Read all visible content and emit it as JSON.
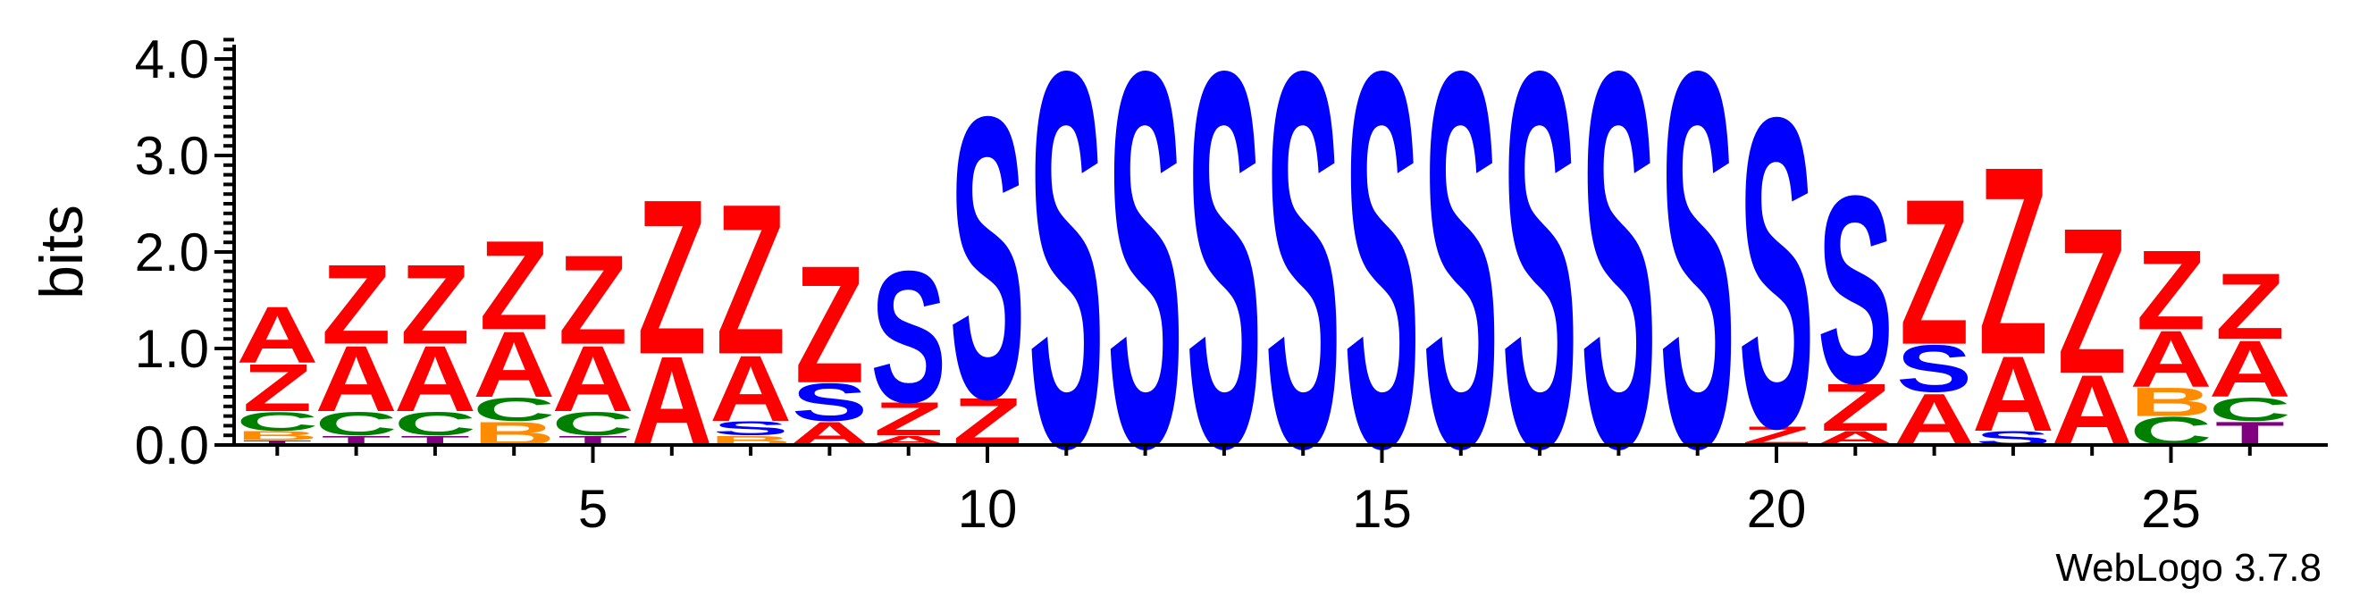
{
  "chart_data": {
    "type": "sequence-logo",
    "ylabel": "bits",
    "ylim": [
      0,
      4.2
    ],
    "yticks": [
      "0.0",
      "1.0",
      "2.0",
      "3.0",
      "4.0"
    ],
    "xticks": [
      5,
      10,
      15,
      20,
      25
    ],
    "credit": "WebLogo 3.7.8",
    "colors": {
      "A": "#ff0000",
      "Z": "#ff0000",
      "S": "#0000ff",
      "C": "#008000",
      "T": "#800080",
      "B": "#ff8c00"
    },
    "positions": [
      {
        "pos": 1,
        "stack": [
          [
            "T",
            0.05
          ],
          [
            "B",
            0.1
          ],
          [
            "C",
            0.2
          ],
          [
            "Z",
            0.5
          ],
          [
            "A",
            0.6
          ]
        ]
      },
      {
        "pos": 2,
        "stack": [
          [
            "T",
            0.1
          ],
          [
            "C",
            0.25
          ],
          [
            "A",
            0.7
          ],
          [
            "Z",
            0.85
          ]
        ]
      },
      {
        "pos": 3,
        "stack": [
          [
            "T",
            0.1
          ],
          [
            "C",
            0.25
          ],
          [
            "A",
            0.7
          ],
          [
            "Z",
            0.85
          ]
        ]
      },
      {
        "pos": 4,
        "stack": [
          [
            "B",
            0.25
          ],
          [
            "C",
            0.25
          ],
          [
            "A",
            0.7
          ],
          [
            "Z",
            0.95
          ]
        ]
      },
      {
        "pos": 5,
        "stack": [
          [
            "T",
            0.1
          ],
          [
            "C",
            0.25
          ],
          [
            "A",
            0.7
          ],
          [
            "Z",
            0.95
          ]
        ]
      },
      {
        "pos": 6,
        "stack": [
          [
            "A",
            0.95
          ],
          [
            "Z",
            1.65
          ]
        ]
      },
      {
        "pos": 7,
        "stack": [
          [
            "B",
            0.1
          ],
          [
            "S",
            0.15
          ],
          [
            "A",
            0.7
          ],
          [
            "Z",
            1.6
          ]
        ]
      },
      {
        "pos": 8,
        "stack": [
          [
            "A",
            0.25
          ],
          [
            "S",
            0.4
          ],
          [
            "Z",
            1.25
          ]
        ]
      },
      {
        "pos": 9,
        "stack": [
          [
            "A",
            0.1
          ],
          [
            "Z",
            0.35
          ],
          [
            "S",
            1.4
          ]
        ]
      },
      {
        "pos": 10,
        "stack": [
          [
            "Z",
            0.5
          ],
          [
            "S",
            3.0
          ]
        ]
      },
      {
        "pos": 11,
        "stack": [
          [
            "S",
            4.0
          ]
        ]
      },
      {
        "pos": 12,
        "stack": [
          [
            "S",
            4.0
          ]
        ]
      },
      {
        "pos": 13,
        "stack": [
          [
            "S",
            4.0
          ]
        ]
      },
      {
        "pos": 14,
        "stack": [
          [
            "S",
            4.0
          ]
        ]
      },
      {
        "pos": 15,
        "stack": [
          [
            "S",
            4.0
          ]
        ]
      },
      {
        "pos": 16,
        "stack": [
          [
            "S",
            4.0
          ]
        ]
      },
      {
        "pos": 17,
        "stack": [
          [
            "S",
            4.0
          ]
        ]
      },
      {
        "pos": 18,
        "stack": [
          [
            "S",
            4.0
          ]
        ]
      },
      {
        "pos": 19,
        "stack": [
          [
            "S",
            4.0
          ]
        ]
      },
      {
        "pos": 20,
        "stack": [
          [
            "Z",
            0.2
          ],
          [
            "S",
            3.3
          ]
        ]
      },
      {
        "pos": 21,
        "stack": [
          [
            "A",
            0.15
          ],
          [
            "Z",
            0.5
          ],
          [
            "S",
            2.0
          ]
        ]
      },
      {
        "pos": 22,
        "stack": [
          [
            "A",
            0.55
          ],
          [
            "S",
            0.5
          ],
          [
            "Z",
            1.55
          ]
        ]
      },
      {
        "pos": 23,
        "stack": [
          [
            "S",
            0.15
          ],
          [
            "A",
            0.8
          ],
          [
            "Z",
            2.0
          ]
        ]
      },
      {
        "pos": 24,
        "stack": [
          [
            "A",
            0.75
          ],
          [
            "Z",
            1.55
          ]
        ]
      },
      {
        "pos": 25,
        "stack": [
          [
            "C",
            0.3
          ],
          [
            "B",
            0.3
          ],
          [
            "A",
            0.6
          ],
          [
            "Z",
            0.85
          ]
        ]
      },
      {
        "pos": 26,
        "stack": [
          [
            "T",
            0.25
          ],
          [
            "C",
            0.25
          ],
          [
            "A",
            0.6
          ],
          [
            "Z",
            0.7
          ]
        ]
      }
    ]
  }
}
